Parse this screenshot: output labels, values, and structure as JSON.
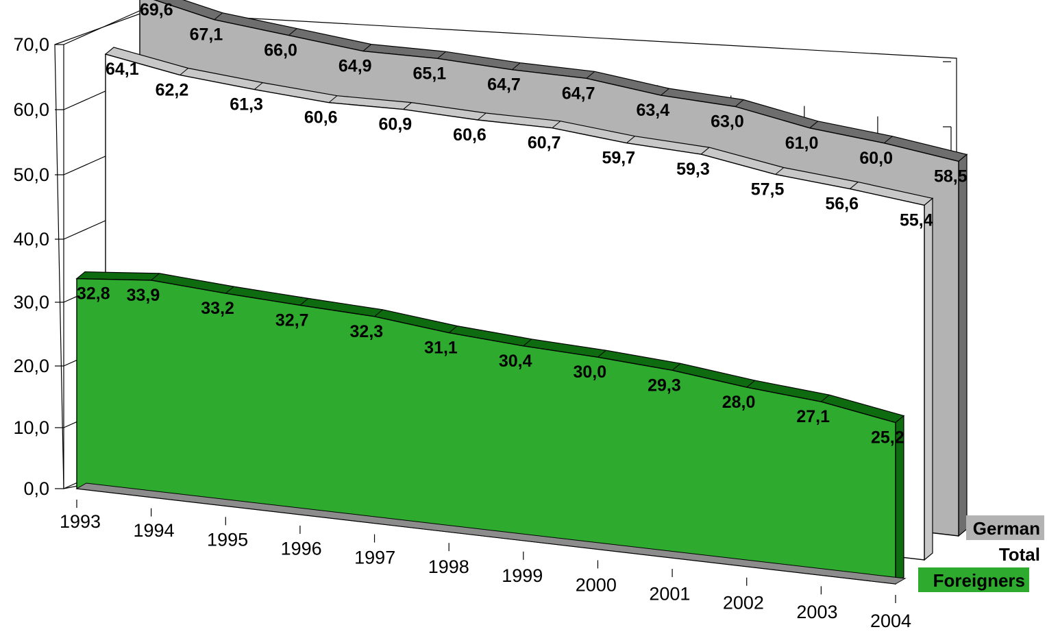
{
  "chart_data": {
    "type": "area",
    "categories": [
      "1993",
      "1994",
      "1995",
      "1996",
      "1997",
      "1998",
      "1999",
      "2000",
      "2001",
      "2002",
      "2003",
      "2004"
    ],
    "series": [
      {
        "name": "German",
        "color": "#b3b3b3",
        "values": [
          69.6,
          67.1,
          66.0,
          64.9,
          65.1,
          64.7,
          64.7,
          63.4,
          63.0,
          61.0,
          60.0,
          58.5
        ],
        "labels": [
          "69,6",
          "67,1",
          "66,0",
          "64,9",
          "65,1",
          "64,7",
          "64,7",
          "63,4",
          "63,0",
          "61,0",
          "60,0",
          "58,5"
        ]
      },
      {
        "name": "Total",
        "color": "#ffffff",
        "values": [
          64.1,
          62.2,
          61.3,
          60.6,
          60.9,
          60.6,
          60.7,
          59.7,
          59.3,
          57.5,
          56.6,
          55.4
        ],
        "labels": [
          "64,1",
          "62,2",
          "61,3",
          "60,6",
          "60,9",
          "60,6",
          "60,7",
          "59,7",
          "59,3",
          "57,5",
          "56,6",
          "55,4"
        ]
      },
      {
        "name": "Foreigners",
        "color": "#2eab2e",
        "values": [
          32.8,
          33.9,
          33.2,
          32.7,
          32.3,
          31.1,
          30.4,
          30.0,
          29.3,
          28.0,
          27.1,
          25.2
        ],
        "labels": [
          "32,8",
          "33,9",
          "33,2",
          "32,7",
          "32,3",
          "31,1",
          "30,4",
          "30,0",
          "29,3",
          "28,0",
          "27,1",
          "25,2"
        ]
      }
    ],
    "y_ticks": [
      "0,0",
      "10,0",
      "20,0",
      "30,0",
      "40,0",
      "50,0",
      "60,0",
      "70,0"
    ],
    "ylim": [
      0,
      70
    ],
    "legend_position": "bottom-right",
    "grid": true
  }
}
